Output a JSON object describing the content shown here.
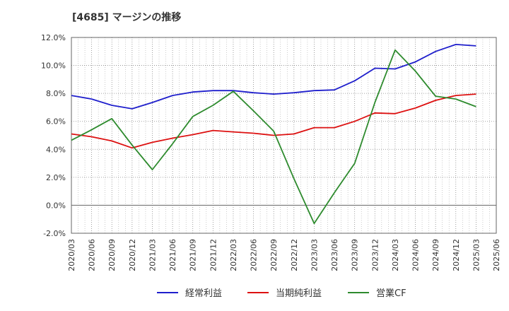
{
  "chart_data": {
    "type": "line",
    "title": "[4685]  マージンの推移",
    "xlabel": "",
    "ylabel": "",
    "ylim": [
      -2.0,
      12.0
    ],
    "y_ticks": [
      "12.0%",
      "10.0%",
      "8.0%",
      "6.0%",
      "4.0%",
      "2.0%",
      "0.0%",
      "-2.0%"
    ],
    "y_tick_values": [
      12,
      10,
      8,
      6,
      4,
      2,
      0,
      -2
    ],
    "categories": [
      "2020/03",
      "2020/06",
      "2020/09",
      "2020/12",
      "2021/03",
      "2021/06",
      "2021/09",
      "2021/12",
      "2022/03",
      "2022/06",
      "2022/09",
      "2022/12",
      "2023/03",
      "2023/06",
      "2023/09",
      "2023/12",
      "2024/03",
      "2024/06",
      "2024/09",
      "2024/12",
      "2025/03",
      "2025/06"
    ],
    "grid": true,
    "legend_position": "bottom",
    "series": [
      {
        "name": "経常利益",
        "color": "#1f1fcc",
        "values": [
          7.85,
          7.6,
          7.15,
          6.9,
          7.35,
          7.85,
          8.1,
          8.2,
          8.2,
          8.05,
          7.95,
          8.05,
          8.2,
          8.25,
          8.9,
          9.8,
          9.75,
          10.25,
          11.0,
          11.5,
          11.4,
          null
        ]
      },
      {
        "name": "当期純利益",
        "color": "#dd1111",
        "values": [
          5.1,
          4.9,
          4.6,
          4.1,
          4.5,
          4.8,
          5.05,
          5.35,
          5.25,
          5.15,
          5.0,
          5.1,
          5.55,
          5.55,
          6.0,
          6.6,
          6.55,
          6.95,
          7.5,
          7.85,
          7.95,
          null
        ]
      },
      {
        "name": "営業CF",
        "color": "#2e8b2e",
        "values": [
          4.65,
          5.4,
          6.2,
          4.3,
          2.55,
          4.4,
          6.35,
          7.15,
          8.15,
          6.75,
          5.3,
          1.9,
          -1.3,
          0.9,
          3.0,
          7.35,
          11.1,
          9.6,
          7.8,
          7.6,
          7.05,
          null
        ]
      }
    ]
  }
}
